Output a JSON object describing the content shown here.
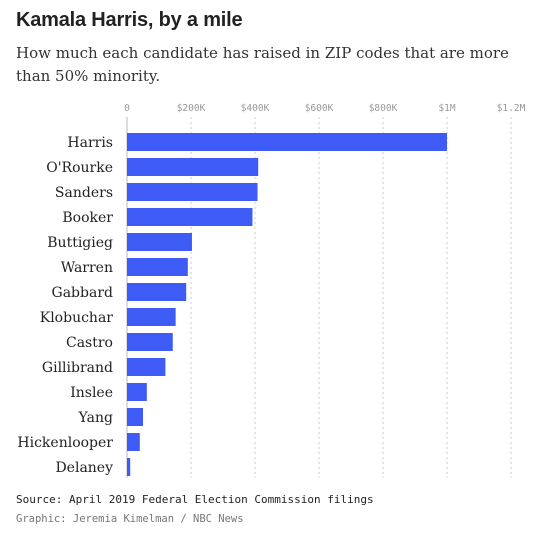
{
  "header": {
    "title": "Kamala Harris, by a mile",
    "subtitle": "How much each candidate has raised in ZIP codes that are more than 50% minority."
  },
  "footer": {
    "source": "Source: April 2019 Federal Election Commission filings",
    "credit": "Graphic: Jeremia Kimelman / NBC News"
  },
  "chart_data": {
    "type": "bar",
    "orientation": "horizontal",
    "title": "Kamala Harris, by a mile",
    "subtitle": "How much each candidate has raised in ZIP codes that are more than 50% minority.",
    "xlabel": "",
    "ylabel": "",
    "xlim": [
      0,
      1200000
    ],
    "grid": true,
    "ticks": [
      {
        "value": 0,
        "label": "0"
      },
      {
        "value": 200000,
        "label": "$200K"
      },
      {
        "value": 400000,
        "label": "$400K"
      },
      {
        "value": 600000,
        "label": "$600K"
      },
      {
        "value": 800000,
        "label": "$800K"
      },
      {
        "value": 1000000,
        "label": "$1M"
      },
      {
        "value": 1200000,
        "label": "$1.2M"
      }
    ],
    "categories": [
      "Harris",
      "O'Rourke",
      "Sanders",
      "Booker",
      "Buttigieg",
      "Warren",
      "Gabbard",
      "Klobuchar",
      "Castro",
      "Gillibrand",
      "Inslee",
      "Yang",
      "Hickenlooper",
      "Delaney"
    ],
    "values": [
      1000000,
      410000,
      408000,
      392000,
      203000,
      190000,
      185000,
      152000,
      143000,
      120000,
      62000,
      50000,
      40000,
      10000
    ],
    "color": "#3e5cf5"
  }
}
